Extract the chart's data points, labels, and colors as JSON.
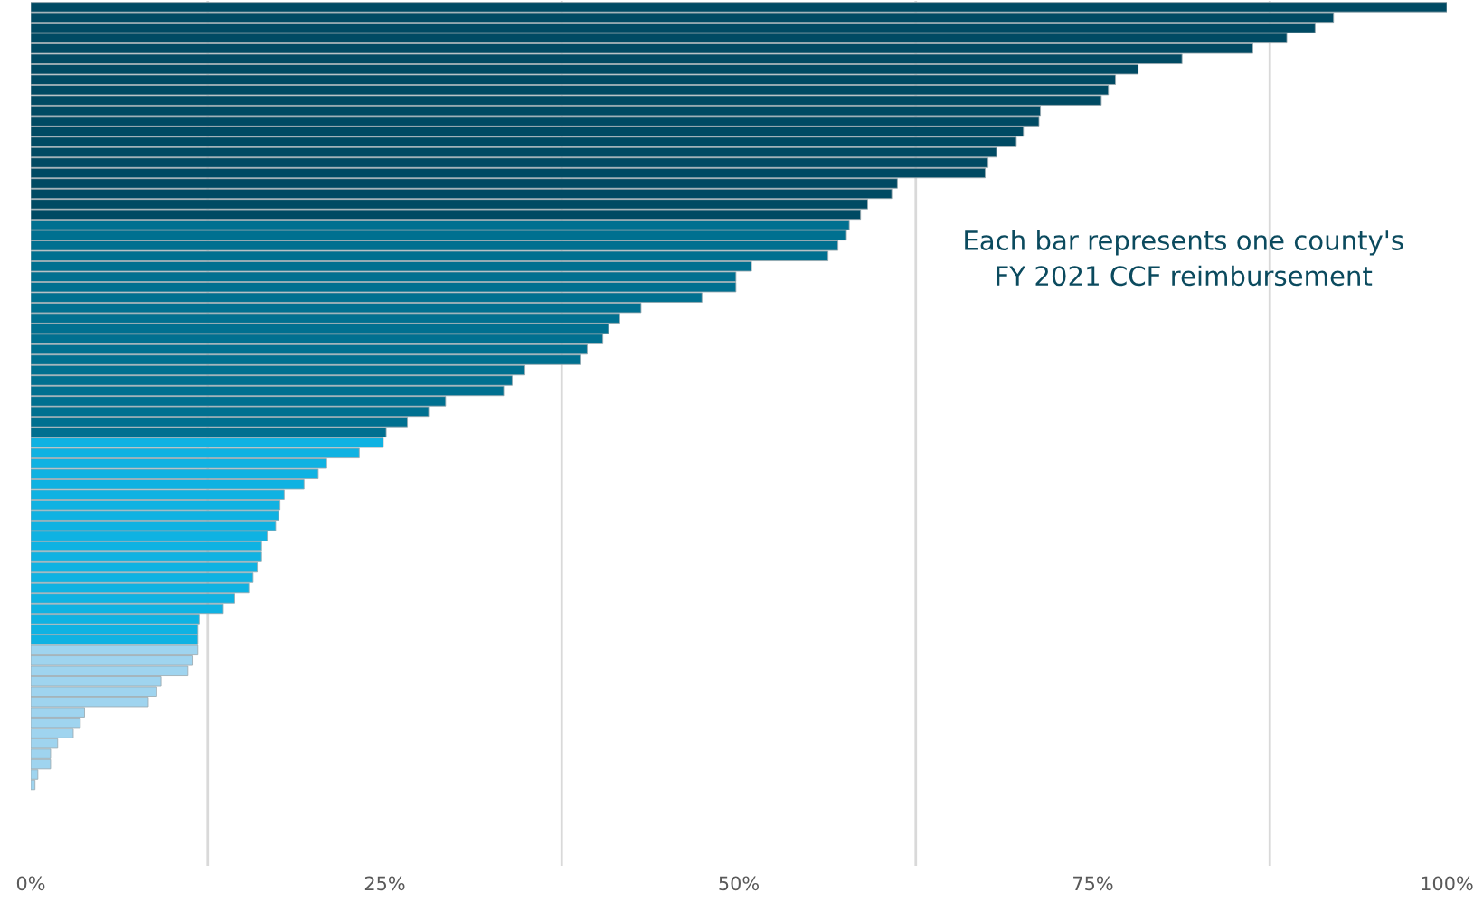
{
  "chart_data": {
    "type": "bar",
    "orientation": "horizontal",
    "categories": [
      null,
      null,
      null,
      null,
      null,
      null,
      null,
      null,
      null,
      null,
      null,
      null,
      null,
      null,
      null,
      null,
      null,
      null,
      null,
      null,
      null,
      null,
      null,
      null,
      null,
      null,
      null,
      null,
      null,
      null,
      null,
      null,
      null,
      null,
      null,
      null,
      null,
      null,
      null,
      null,
      null,
      null,
      null,
      null,
      null,
      null,
      null,
      null,
      null,
      null,
      null,
      null,
      null,
      null,
      null,
      null,
      null,
      null,
      null,
      null,
      null,
      null,
      null,
      null,
      null,
      null,
      null,
      null,
      null,
      null,
      null,
      null,
      null,
      null,
      null,
      null
    ],
    "values": [
      100,
      92.0,
      90.7,
      88.7,
      86.3,
      81.3,
      78.2,
      76.6,
      76.1,
      75.6,
      71.3,
      71.2,
      70.1,
      69.6,
      68.2,
      67.6,
      67.4,
      61.2,
      60.8,
      59.1,
      58.6,
      57.8,
      57.6,
      57.0,
      56.3,
      50.9,
      49.8,
      49.8,
      47.4,
      43.1,
      41.6,
      40.8,
      40.4,
      39.3,
      38.8,
      34.9,
      34.0,
      33.4,
      29.3,
      28.1,
      26.6,
      25.1,
      24.9,
      23.2,
      20.9,
      20.3,
      19.3,
      17.9,
      17.6,
      17.5,
      17.3,
      16.7,
      16.3,
      16.3,
      16.0,
      15.7,
      15.4,
      14.4,
      13.6,
      11.9,
      11.8,
      11.8,
      11.8,
      11.4,
      11.1,
      9.2,
      8.9,
      8.3,
      3.8,
      3.5,
      3.0,
      1.9,
      1.4,
      1.4,
      0.5,
      0.3
    ],
    "colors": [
      "#004a63",
      "#004a63",
      "#004a63",
      "#004a63",
      "#004a63",
      "#004a63",
      "#004a63",
      "#004a63",
      "#004a63",
      "#004a63",
      "#004a63",
      "#004a63",
      "#004a63",
      "#004a63",
      "#004a63",
      "#004a63",
      "#004a63",
      "#004a63",
      "#004a63",
      "#004a63",
      "#004a63",
      "#007090",
      "#007090",
      "#007090",
      "#007090",
      "#007090",
      "#007090",
      "#007090",
      "#007090",
      "#007090",
      "#007090",
      "#007090",
      "#007090",
      "#007090",
      "#007090",
      "#007090",
      "#007090",
      "#007090",
      "#007090",
      "#007090",
      "#007090",
      "#007090",
      "#0fb2e2",
      "#0fb2e2",
      "#0fb2e2",
      "#0fb2e2",
      "#0fb2e2",
      "#0fb2e2",
      "#0fb2e2",
      "#0fb2e2",
      "#0fb2e2",
      "#0fb2e2",
      "#0fb2e2",
      "#0fb2e2",
      "#0fb2e2",
      "#0fb2e2",
      "#0fb2e2",
      "#0fb2e2",
      "#0fb2e2",
      "#0fb2e2",
      "#0fb2e2",
      "#0fb2e2",
      "#9fd4ef",
      "#9fd4ef",
      "#9fd4ef",
      "#9fd4ef",
      "#9fd4ef",
      "#9fd4ef",
      "#9fd4ef",
      "#9fd4ef",
      "#9fd4ef",
      "#9fd4ef",
      "#9fd4ef",
      "#9fd4ef",
      "#9fd4ef",
      "#9fd4ef"
    ],
    "xlim": [
      0,
      100
    ],
    "xticks": [
      {
        "value": 0,
        "label": "0%"
      },
      {
        "value": 12.5,
        "label": null
      },
      {
        "value": 25,
        "label": "25%"
      },
      {
        "value": 37.5,
        "label": null
      },
      {
        "value": 50,
        "label": "50%"
      },
      {
        "value": 62.5,
        "label": null
      },
      {
        "value": 75,
        "label": "75%"
      },
      {
        "value": 87.5,
        "label": null
      },
      {
        "value": 100,
        "label": "100%"
      }
    ],
    "grid": "x",
    "tick_labels": "x",
    "annotations": [
      "Each bar represents one county's\nFY 2021 CCF reimbursement"
    ]
  }
}
